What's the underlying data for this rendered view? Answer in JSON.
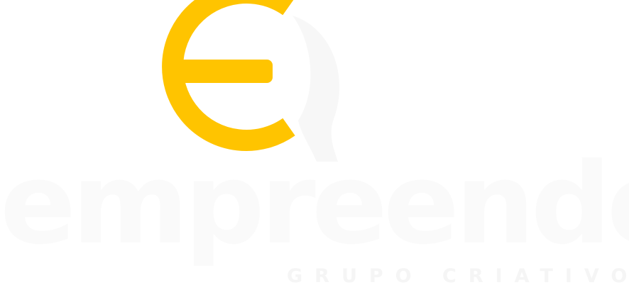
{
  "logo": {
    "wordmark": "empreender",
    "tagline": "GRUPO CRIATIVO",
    "colors": {
      "accent": "#FFC400",
      "background": "#FFFFFF",
      "mark_gray": "#F7F7F7",
      "text": "#FAFAFA",
      "tagline_text": "#F5F5F5"
    }
  }
}
